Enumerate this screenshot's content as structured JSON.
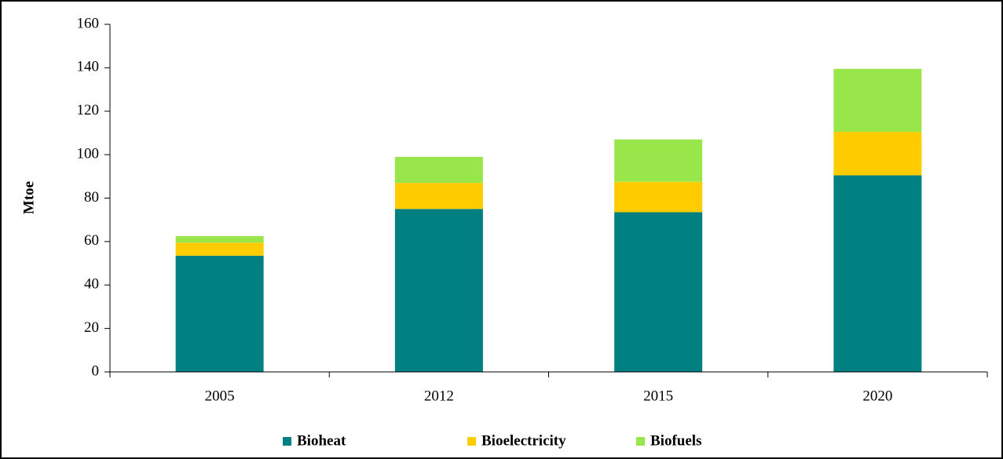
{
  "chart_data": {
    "type": "stacked_bar",
    "y_label": "Mtoe",
    "categories": [
      "2005",
      "2012",
      "2015",
      "2020"
    ],
    "series": [
      {
        "name": "Bioheat",
        "color": "#008080",
        "values": [
          53.5,
          75,
          73.5,
          90.5
        ]
      },
      {
        "name": "Bioelectricity",
        "color": "#ffcc00",
        "values": [
          6,
          12,
          14,
          20
        ]
      },
      {
        "name": "Biofuels",
        "color": "#99e64a",
        "values": [
          3,
          12,
          19.5,
          29
        ]
      }
    ],
    "ylim": [
      0,
      160
    ],
    "yticks": [
      0,
      20,
      40,
      60,
      80,
      100,
      120,
      140,
      160
    ],
    "legend": "bottom"
  }
}
